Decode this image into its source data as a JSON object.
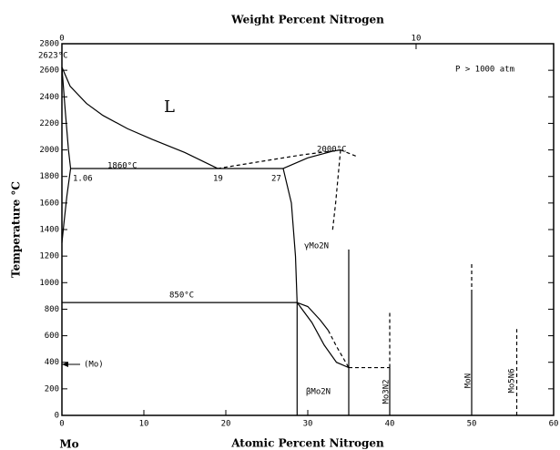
{
  "chart_data": {
    "type": "phase",
    "title": "Weight Percent Nitrogen",
    "xlabel": "Atomic Percent Nitrogen",
    "ylabel": "Temperature °C",
    "element_label": "Mo",
    "xlim": [
      0,
      60
    ],
    "xticks": [
      0,
      10,
      20,
      30,
      40,
      50,
      60
    ],
    "ylim": [
      0,
      2800
    ],
    "yticks": [
      0,
      200,
      400,
      600,
      800,
      1000,
      1200,
      1400,
      1600,
      1800,
      2000,
      2200,
      2400,
      2600,
      2800
    ],
    "x2ticks": [
      0,
      10
    ],
    "color": "#000",
    "series": [
      {
        "style": "solid",
        "x": [
          0,
          1,
          3,
          5,
          8,
          11,
          15,
          19
        ],
        "values": [
          2623,
          2480,
          2350,
          2260,
          2160,
          2080,
          1980,
          1860
        ]
      },
      {
        "style": "solid",
        "x": [
          0,
          0.4,
          0.8,
          1.06
        ],
        "values": [
          2623,
          2300,
          2000,
          1860
        ]
      },
      {
        "style": "solid",
        "x": [
          1.06,
          0.6,
          0.25,
          0
        ],
        "values": [
          1860,
          1650,
          1450,
          1300
        ]
      },
      {
        "style": "solid",
        "x": [
          1.06,
          27
        ],
        "values": [
          1860,
          1860
        ]
      },
      {
        "style": "dashed",
        "x": [
          19,
          24,
          29,
          34
        ],
        "values": [
          1860,
          1910,
          1960,
          2000
        ]
      },
      {
        "style": "solid",
        "x": [
          27,
          30,
          33,
          34
        ],
        "values": [
          1860,
          1940,
          1990,
          2000
        ]
      },
      {
        "style": "dashed",
        "x": [
          34,
          36
        ],
        "values": [
          2000,
          1950
        ]
      },
      {
        "style": "solid",
        "x": [
          27,
          28,
          28.5,
          28.7,
          28.7
        ],
        "values": [
          1860,
          1600,
          1200,
          850,
          0
        ]
      },
      {
        "style": "dashed",
        "x": [
          34,
          33.4,
          33
        ],
        "values": [
          2000,
          1600,
          1380
        ]
      },
      {
        "style": "solid",
        "x": [
          35,
          35
        ],
        "values": [
          0,
          1250
        ]
      },
      {
        "style": "solid",
        "x": [
          0,
          28.7
        ],
        "values": [
          850,
          850
        ]
      },
      {
        "style": "solid",
        "x": [
          28.7,
          30.5,
          32,
          33.5,
          35
        ],
        "values": [
          850,
          700,
          530,
          400,
          360
        ]
      },
      {
        "style": "solid",
        "x": [
          28.7,
          30,
          31.5,
          32.5
        ],
        "values": [
          850,
          820,
          720,
          640
        ]
      },
      {
        "style": "dashed",
        "x": [
          32.5,
          33.5,
          35
        ],
        "values": [
          640,
          520,
          360
        ]
      },
      {
        "style": "dashed",
        "x": [
          35,
          40
        ],
        "values": [
          360,
          360
        ]
      },
      {
        "style": "solid",
        "x": [
          40,
          40
        ],
        "values": [
          0,
          360
        ]
      },
      {
        "style": "dashed",
        "x": [
          40,
          40
        ],
        "values": [
          360,
          780
        ]
      },
      {
        "style": "solid",
        "x": [
          50,
          50
        ],
        "values": [
          0,
          920
        ]
      },
      {
        "style": "dashed",
        "x": [
          50,
          50
        ],
        "values": [
          920,
          1150
        ]
      },
      {
        "style": "dashed",
        "x": [
          55.5,
          55.5
        ],
        "values": [
          0,
          650
        ]
      }
    ],
    "annotations": [
      "2623°C",
      "P > 1000 atm",
      "L",
      "1860°C",
      "1.06",
      "19",
      "27",
      "2000°C",
      "γMo2N",
      "850°C",
      "βMo2N",
      "Mo3N2",
      "MoN",
      "Mo5N6",
      "(Mo)"
    ]
  }
}
